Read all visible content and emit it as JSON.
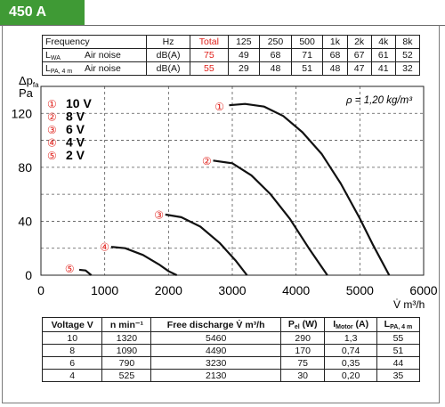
{
  "header": {
    "title": "450 A"
  },
  "noise_table": {
    "header": [
      "Frequency",
      "",
      "Hz",
      "Total",
      "125",
      "250",
      "500",
      "1k",
      "2k",
      "4k",
      "8k"
    ],
    "rows": [
      {
        "symbol": "L",
        "symbol_sub": "WA",
        "name": "Air noise",
        "unit": "dB(A)",
        "total": "75",
        "values": [
          "49",
          "68",
          "71",
          "68",
          "67",
          "61",
          "52"
        ]
      },
      {
        "symbol": "L",
        "symbol_sub": "PA, 4 m",
        "name": "Air noise",
        "unit": "dB(A)",
        "total": "55",
        "values": [
          "29",
          "48",
          "51",
          "48",
          "47",
          "41",
          "32"
        ]
      }
    ]
  },
  "chart_data": {
    "type": "line",
    "ylabel_main": "Δp",
    "ylabel_sub": "fa",
    "ylabel_unit": "Pa",
    "xlabel": "V̇ m³/h",
    "xlim": [
      0,
      6000
    ],
    "ylim": [
      0,
      140
    ],
    "xticks": [
      "0",
      "1000",
      "2000",
      "3000",
      "4000",
      "5000",
      "6000"
    ],
    "yticks": [
      "0",
      "40",
      "80",
      "120"
    ],
    "xtick_values": [
      0,
      1000,
      2000,
      3000,
      4000,
      5000,
      6000
    ],
    "ytick_values": [
      0,
      40,
      80,
      120
    ],
    "grid": "dashed",
    "annotation": "ρ = 1,20 kg/m³",
    "legend": [
      {
        "marker": "①",
        "label": "10 V"
      },
      {
        "marker": "②",
        "label": "8 V"
      },
      {
        "marker": "③",
        "label": "6 V"
      },
      {
        "marker": "④",
        "label": "4 V"
      },
      {
        "marker": "⑤",
        "label": "2 V"
      }
    ],
    "series": [
      {
        "marker": "①",
        "label_x": 2800,
        "label_y": 125,
        "x": [
          2950,
          3200,
          3500,
          3800,
          4100,
          4400,
          4700,
          5000,
          5200,
          5460
        ],
        "y": [
          126,
          127,
          125,
          118,
          106,
          90,
          68,
          42,
          23,
          0
        ]
      },
      {
        "marker": "②",
        "label_x": 2600,
        "label_y": 85,
        "x": [
          2700,
          3000,
          3300,
          3600,
          3900,
          4200,
          4490
        ],
        "y": [
          85,
          83,
          74,
          60,
          42,
          20,
          0
        ]
      },
      {
        "marker": "③",
        "label_x": 1850,
        "label_y": 45,
        "x": [
          1950,
          2200,
          2500,
          2800,
          3050,
          3230
        ],
        "y": [
          45,
          43,
          36,
          24,
          11,
          0
        ]
      },
      {
        "marker": "④",
        "label_x": 1000,
        "label_y": 21,
        "x": [
          1100,
          1320,
          1600,
          1850,
          2000,
          2130
        ],
        "y": [
          21,
          20,
          15,
          8,
          3,
          0
        ]
      },
      {
        "marker": "⑤",
        "label_x": 450,
        "label_y": 5,
        "x": [
          600,
          700,
          790
        ],
        "y": [
          4,
          3.5,
          0
        ]
      }
    ]
  },
  "perf_table": {
    "headers": [
      {
        "label": "Voltage",
        "unit": "V"
      },
      {
        "label": "n",
        "unit": "min⁻¹"
      },
      {
        "label": "Free discharge V̇",
        "unit": "m³/h"
      },
      {
        "label": "P",
        "sub": "el",
        "unit": "(W)"
      },
      {
        "label": "I",
        "sub": "Motor",
        "unit": "(A)"
      },
      {
        "label": "L",
        "sub": "PA, 4 m",
        "unit": ""
      }
    ],
    "rows": [
      [
        "10",
        "1320",
        "5460",
        "290",
        "1,3",
        "55"
      ],
      [
        "8",
        "1090",
        "4490",
        "170",
        "0,74",
        "51"
      ],
      [
        "6",
        "790",
        "3230",
        "75",
        "0,35",
        "44"
      ],
      [
        "4",
        "525",
        "2130",
        "30",
        "0,20",
        "35"
      ]
    ]
  }
}
